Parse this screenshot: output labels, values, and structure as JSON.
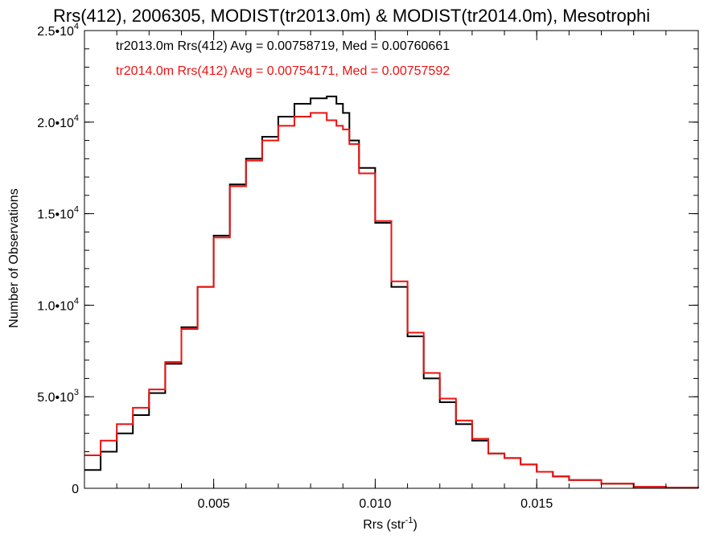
{
  "chart_data": {
    "type": "line",
    "step": true,
    "title": "Rrs(412), 2006305, MODIST(tr2013.0m) & MODIST(tr2014.0m), Mesotrophi",
    "xlabel": {
      "base": "Rrs (str",
      "sup": "-1",
      "tail": ")"
    },
    "ylabel": "Number of Observations",
    "xlim": [
      0.001,
      0.02
    ],
    "ylim": [
      0,
      25000
    ],
    "x_ticks": [
      {
        "value": 0.005,
        "label": "0.005"
      },
      {
        "value": 0.01,
        "label": "0.010"
      },
      {
        "value": 0.015,
        "label": "0.015"
      }
    ],
    "y_ticks": [
      {
        "value": 0,
        "mant": "0",
        "exp": ""
      },
      {
        "value": 5000,
        "mant": "5.0•10",
        "exp": "3"
      },
      {
        "value": 10000,
        "mant": "1.0•10",
        "exp": "4"
      },
      {
        "value": 15000,
        "mant": "1.5•10",
        "exp": "4"
      },
      {
        "value": 20000,
        "mant": "2.0•10",
        "exp": "4"
      },
      {
        "value": 25000,
        "mant": "2.5•10",
        "exp": "4"
      }
    ],
    "x_minor_step": 0.001,
    "y_minor_step": 1000,
    "legend_position": "top-left",
    "series": [
      {
        "name": "tr2013.0m",
        "label": "tr2013.0m Rrs(412) Avg = 0.00758719, Med = 0.00760661",
        "color": "#000000",
        "points": [
          [
            0.001,
            1000
          ],
          [
            0.0015,
            2000
          ],
          [
            0.002,
            3000
          ],
          [
            0.0025,
            4000
          ],
          [
            0.003,
            5200
          ],
          [
            0.0035,
            6800
          ],
          [
            0.004,
            8800
          ],
          [
            0.0045,
            11000
          ],
          [
            0.005,
            13800
          ],
          [
            0.0055,
            16600
          ],
          [
            0.006,
            18000
          ],
          [
            0.0065,
            19200
          ],
          [
            0.007,
            20300
          ],
          [
            0.0075,
            21000
          ],
          [
            0.008,
            21300
          ],
          [
            0.0085,
            21400
          ],
          [
            0.0088,
            21000
          ],
          [
            0.009,
            20500
          ],
          [
            0.0092,
            19000
          ],
          [
            0.0095,
            17500
          ],
          [
            0.01,
            14500
          ],
          [
            0.0105,
            11000
          ],
          [
            0.011,
            8300
          ],
          [
            0.0115,
            6000
          ],
          [
            0.012,
            4700
          ],
          [
            0.0125,
            3500
          ],
          [
            0.013,
            2600
          ],
          [
            0.0135,
            1900
          ],
          [
            0.014,
            1650
          ],
          [
            0.0145,
            1300
          ],
          [
            0.015,
            900
          ],
          [
            0.0155,
            650
          ],
          [
            0.016,
            450
          ],
          [
            0.017,
            250
          ],
          [
            0.018,
            80
          ],
          [
            0.019,
            30
          ],
          [
            0.02,
            10
          ]
        ]
      },
      {
        "name": "tr2014.0m",
        "label": "tr2014.0m Rrs(412) Avg = 0.00754171, Med = 0.00757592",
        "color": "#ee1111",
        "points": [
          [
            0.001,
            1800
          ],
          [
            0.0015,
            2600
          ],
          [
            0.002,
            3500
          ],
          [
            0.0025,
            4400
          ],
          [
            0.003,
            5400
          ],
          [
            0.0035,
            6900
          ],
          [
            0.004,
            8700
          ],
          [
            0.0045,
            11000
          ],
          [
            0.005,
            13700
          ],
          [
            0.0055,
            16500
          ],
          [
            0.006,
            17900
          ],
          [
            0.0065,
            19000
          ],
          [
            0.007,
            19800
          ],
          [
            0.0075,
            20300
          ],
          [
            0.008,
            20500
          ],
          [
            0.0085,
            20100
          ],
          [
            0.0088,
            19800
          ],
          [
            0.009,
            19600
          ],
          [
            0.0092,
            18800
          ],
          [
            0.0095,
            17200
          ],
          [
            0.01,
            14600
          ],
          [
            0.0105,
            11300
          ],
          [
            0.011,
            8500
          ],
          [
            0.0115,
            6300
          ],
          [
            0.012,
            4900
          ],
          [
            0.0125,
            3700
          ],
          [
            0.013,
            2700
          ],
          [
            0.0135,
            1900
          ],
          [
            0.014,
            1650
          ],
          [
            0.0145,
            1300
          ],
          [
            0.015,
            900
          ],
          [
            0.0155,
            650
          ],
          [
            0.016,
            450
          ],
          [
            0.017,
            250
          ],
          [
            0.018,
            80
          ],
          [
            0.019,
            30
          ],
          [
            0.02,
            10
          ]
        ]
      }
    ]
  }
}
